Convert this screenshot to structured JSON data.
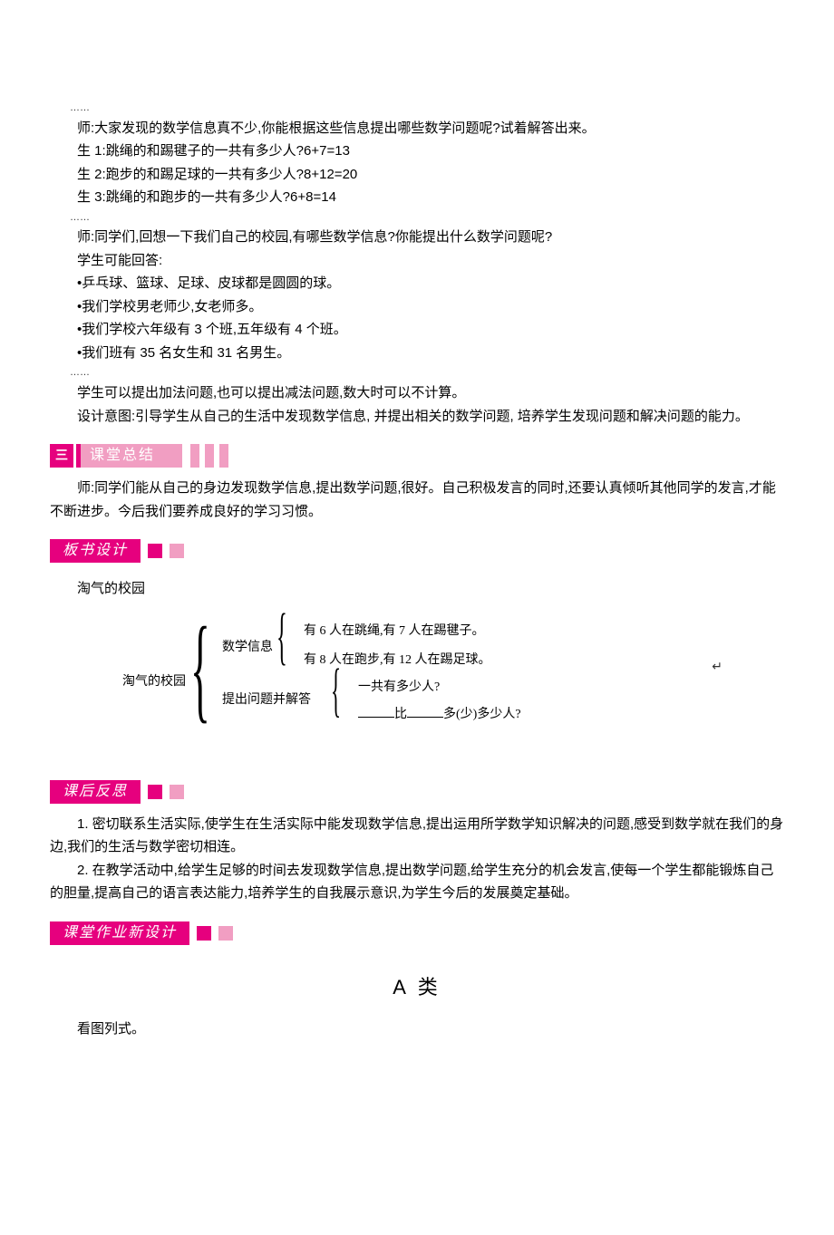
{
  "intro": {
    "ellipsis": "……",
    "t_prompt": "师:大家发现的数学信息真不少,你能根据这些信息提出哪些数学问题呢?试着解答出来。",
    "s1": "生 1:跳绳的和踢毽子的一共有多少人?6+7=13",
    "s2": "生 2:跑步的和踢足球的一共有多少人?8+12=20",
    "s3": "生 3:跳绳的和跑步的一共有多少人?6+8=14",
    "t_school": "师:同学们,回想一下我们自己的校园,有哪些数学信息?你能提出什么数学问题呢?",
    "s_possible": "学生可能回答:",
    "bullet1": "•乒乓球、篮球、足球、皮球都是圆圆的球。",
    "bullet2": "•我们学校男老师少,女老师多。",
    "bullet3": "•我们学校六年级有 3 个班,五年级有 4 个班。",
    "bullet4": "•我们班有 35 名女生和 31 名男生。",
    "s_add_sub": "学生可以提出加法问题,也可以提出减法问题,数大时可以不计算。",
    "design": "设计意图:引导学生从自己的生活中发现数学信息, 并提出相关的数学问题, 培养学生发现问题和解决问题的能力。"
  },
  "summary": {
    "banner_label": "课堂总结",
    "banner_icon": "三",
    "text": "师:同学们能从自己的身边发现数学信息,提出数学问题,很好。自己积极发言的同时,还要认真倾听其他同学的发言,才能不断进步。今后我们要养成良好的学习习惯。"
  },
  "board": {
    "heading": "板书设计",
    "subtitle": "淘气的校园",
    "root": "淘气的校园",
    "branch1": "数学信息",
    "info1": "有 6 人在跳绳,有 7 人在踢毽子。",
    "info2": "有 8 人在跑步,有 12 人在踢足球。",
    "branch2": "提出问题并解答",
    "q1": "一共有多少人?",
    "q2_mid": "比",
    "q2_tail": "多(少)多少人?"
  },
  "reflection": {
    "heading": "课后反思",
    "p1": "1. 密切联系生活实际,使学生在生活实际中能发现数学信息,提出运用所学数学知识解决的问题,感受到数学就在我们的身边,我们的生活与数学密切相连。",
    "p2": "2. 在教学活动中,给学生足够的时间去发现数学信息,提出数学问题,给学生充分的机会发言,使每一个学生都能锻炼自己的胆量,提高自己的语言表达能力,培养学生的自我展示意识,为学生今后的发展奠定基础。"
  },
  "homework": {
    "heading": "课堂作业新设计",
    "category": "A 类",
    "task": "看图列式。"
  },
  "colors": {
    "magenta": "#e6007e",
    "pink": "#f19ec2",
    "text": "#000000",
    "bg": "#ffffff"
  }
}
